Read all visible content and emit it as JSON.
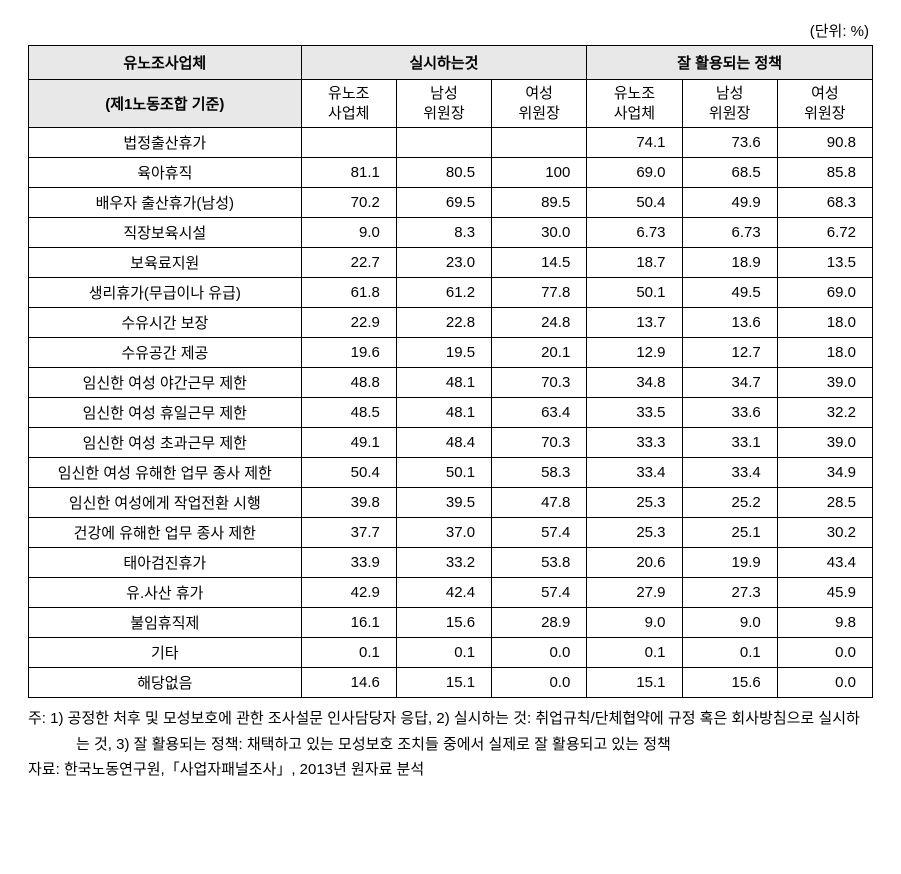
{
  "unit_label": "(단위: %)",
  "headers": {
    "col1_main": "유노조사업체",
    "col1_sub": "(제1노동조합 기준)",
    "group1": "실시하는것",
    "group2": "잘 활용되는 정책",
    "sub1": "유노조\n사업체",
    "sub2": "남성\n위원장",
    "sub3": "여성\n위원장",
    "sub4": "유노조\n사업체",
    "sub5": "남성\n위원장",
    "sub6": "여성\n위원장"
  },
  "rows": [
    {
      "label": "법정출산휴가",
      "v": [
        "",
        "",
        "",
        "74.1",
        "73.6",
        "90.8"
      ]
    },
    {
      "label": "육아휴직",
      "v": [
        "81.1",
        "80.5",
        "100",
        "69.0",
        "68.5",
        "85.8"
      ]
    },
    {
      "label": "배우자 출산휴가(남성)",
      "v": [
        "70.2",
        "69.5",
        "89.5",
        "50.4",
        "49.9",
        "68.3"
      ]
    },
    {
      "label": "직장보육시설",
      "v": [
        "9.0",
        "8.3",
        "30.0",
        "6.73",
        "6.73",
        "6.72"
      ]
    },
    {
      "label": "보육료지원",
      "v": [
        "22.7",
        "23.0",
        "14.5",
        "18.7",
        "18.9",
        "13.5"
      ]
    },
    {
      "label": "생리휴가(무급이나 유급)",
      "v": [
        "61.8",
        "61.2",
        "77.8",
        "50.1",
        "49.5",
        "69.0"
      ]
    },
    {
      "label": "수유시간 보장",
      "v": [
        "22.9",
        "22.8",
        "24.8",
        "13.7",
        "13.6",
        "18.0"
      ]
    },
    {
      "label": "수유공간 제공",
      "v": [
        "19.6",
        "19.5",
        "20.1",
        "12.9",
        "12.7",
        "18.0"
      ]
    },
    {
      "label": "임신한 여성 야간근무 제한",
      "v": [
        "48.8",
        "48.1",
        "70.3",
        "34.8",
        "34.7",
        "39.0"
      ]
    },
    {
      "label": "임신한 여성 휴일근무 제한",
      "v": [
        "48.5",
        "48.1",
        "63.4",
        "33.5",
        "33.6",
        "32.2"
      ]
    },
    {
      "label": "임신한 여성 초과근무 제한",
      "v": [
        "49.1",
        "48.4",
        "70.3",
        "33.3",
        "33.1",
        "39.0"
      ]
    },
    {
      "label": "임신한 여성 유해한 업무 종사 제한",
      "v": [
        "50.4",
        "50.1",
        "58.3",
        "33.4",
        "33.4",
        "34.9"
      ]
    },
    {
      "label": "임신한 여성에게 작업전환 시행",
      "v": [
        "39.8",
        "39.5",
        "47.8",
        "25.3",
        "25.2",
        "28.5"
      ]
    },
    {
      "label": "건강에 유해한 업무 종사 제한",
      "v": [
        "37.7",
        "37.0",
        "57.4",
        "25.3",
        "25.1",
        "30.2"
      ]
    },
    {
      "label": "태아검진휴가",
      "v": [
        "33.9",
        "33.2",
        "53.8",
        "20.6",
        "19.9",
        "43.4"
      ]
    },
    {
      "label": "유.사산 휴가",
      "v": [
        "42.9",
        "42.4",
        "57.4",
        "27.9",
        "27.3",
        "45.9"
      ]
    },
    {
      "label": "불임휴직제",
      "v": [
        "16.1",
        "15.6",
        "28.9",
        "9.0",
        "9.0",
        "9.8"
      ]
    },
    {
      "label": "기타",
      "v": [
        "0.1",
        "0.1",
        "0.0",
        "0.1",
        "0.1",
        "0.0"
      ]
    },
    {
      "label": "해당없음",
      "v": [
        "14.6",
        "15.1",
        "0.0",
        "15.1",
        "15.6",
        "0.0"
      ]
    }
  ],
  "notes": {
    "note_label": "주:",
    "note_text": "1) 공정한 처후 및 모성보호에 관한 조사설문 인사담당자 응답, 2) 실시하는 것: 취업규칙/단체협약에 규정 혹은 회사방침으로 실시하는 것, 3) 잘 활용되는 정책: 채택하고 있는 모성보호 조치들 중에서 실제로 잘 활용되고 있는 정책",
    "source_label": "자료:",
    "source_text": "한국노동연구원,「사업자패널조사」, 2013년 원자료 분석"
  }
}
